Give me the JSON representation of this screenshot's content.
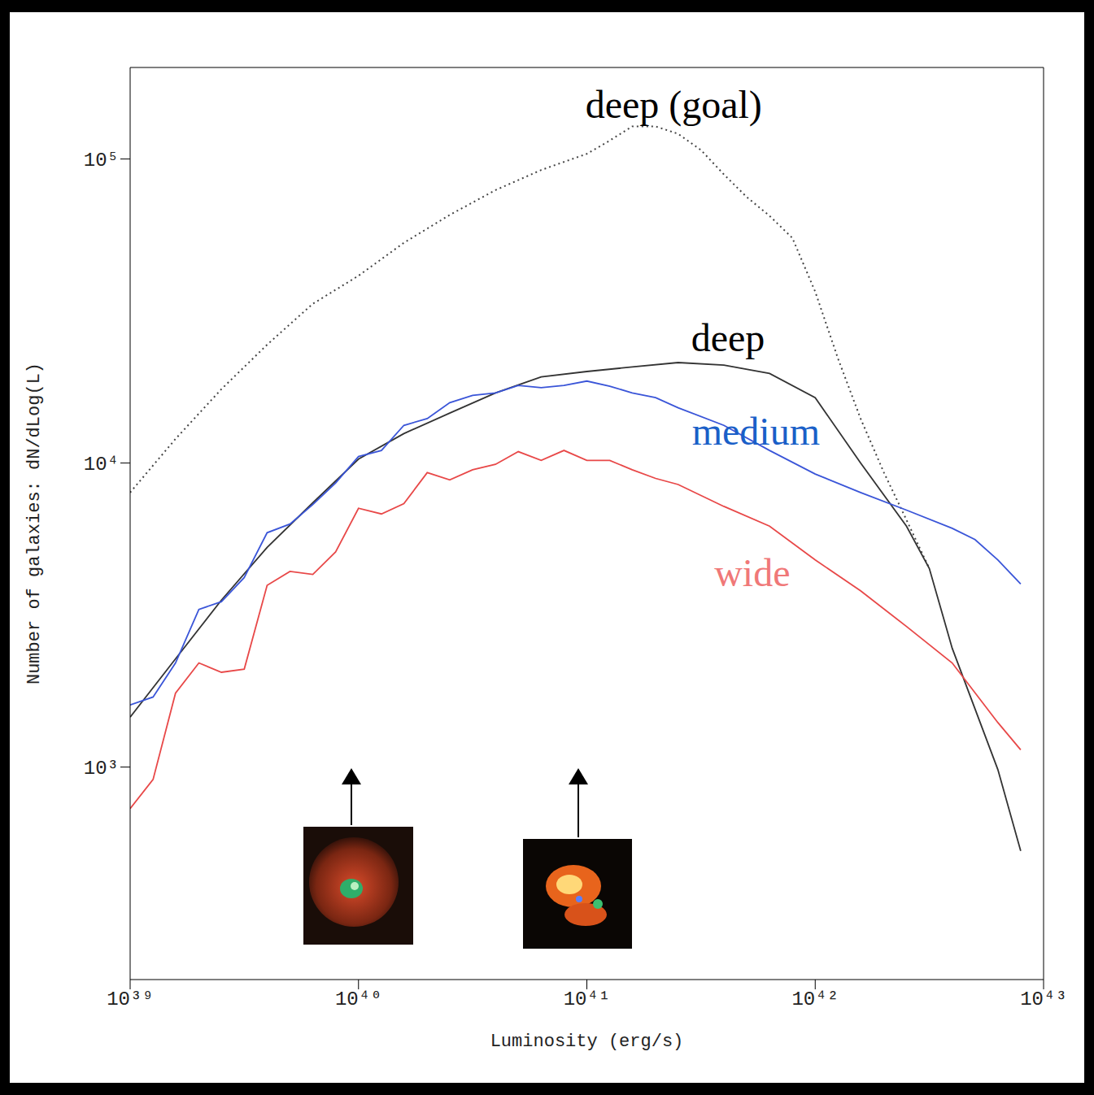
{
  "chart_data": {
    "type": "line",
    "x_label": "Luminosity (erg/s)",
    "y_label": "Number of galaxies: dN/dLog(L)",
    "log": true,
    "xlim": [
      1e+39,
      1e+43
    ],
    "xticks": [
      {
        "value": 1e+39,
        "label": "10³⁹"
      },
      {
        "value": 1e+40,
        "label": "10⁴⁰"
      },
      {
        "value": 1e+41,
        "label": "10⁴¹"
      },
      {
        "value": 1e+42,
        "label": "10⁴²"
      },
      {
        "value": 1e+43,
        "label": "10⁴³"
      }
    ],
    "ylim": [
      200,
      200000
    ],
    "yticks": [
      {
        "value": 1000,
        "label": "10³"
      },
      {
        "value": 10000,
        "label": "10⁴"
      },
      {
        "value": 100000,
        "label": "10⁵"
      }
    ],
    "series": [
      {
        "name": "deep (goal)",
        "color": "#444444",
        "line_style": "dotted",
        "x": [
          1e+39,
          1.58e+39,
          2.51e+39,
          3.98e+39,
          6.31e+39,
          1e+40,
          1.58e+40,
          2.51e+40,
          3.98e+40,
          6.31e+40,
          1e+41,
          1.26e+41,
          1.58e+41,
          2e+41,
          2.51e+41,
          3.16e+41,
          3.98e+41,
          5.01e+41,
          6.31e+41,
          7.94e+41,
          1e+42,
          1.26e+42,
          1.58e+42,
          2e+42,
          2.51e+42,
          3.16e+42
        ],
        "values": [
          8000,
          12000,
          17500,
          24500,
          33400,
          41300,
          53000,
          65500,
          79000,
          92000,
          104000,
          115000,
          128000,
          128000,
          121000,
          107000,
          89000,
          75000,
          65000,
          55000,
          36600,
          22000,
          14000,
          9300,
          6500,
          4500
        ]
      },
      {
        "name": "deep",
        "color": "#333333",
        "line_style": "solid",
        "x": [
          1e+39,
          1.58e+39,
          2.51e+39,
          3.98e+39,
          6.31e+39,
          1e+40,
          1.58e+40,
          2.51e+40,
          3.98e+40,
          6.31e+40,
          1e+41,
          1.58e+41,
          2.51e+41,
          3.98e+41,
          6.31e+41,
          1e+42,
          1.58e+42,
          2.51e+42,
          3.16e+42,
          3.98e+42,
          6.31e+42,
          7.94e+42
        ],
        "values": [
          1460,
          2270,
          3540,
          5280,
          7400,
          10300,
          12500,
          14600,
          17000,
          19200,
          20000,
          20700,
          21400,
          21000,
          19700,
          16400,
          10000,
          6200,
          4500,
          2460,
          980,
          530
        ]
      },
      {
        "name": "medium",
        "color": "#3a55d8",
        "line_style": "solid",
        "x": [
          1e+39,
          1.26e+39,
          1.58e+39,
          2e+39,
          2.51e+39,
          3.16e+39,
          3.98e+39,
          5.01e+39,
          6.31e+39,
          7.94e+39,
          1e+40,
          1.26e+40,
          1.58e+40,
          2e+40,
          2.51e+40,
          3.16e+40,
          3.98e+40,
          5.01e+40,
          6.31e+40,
          7.94e+40,
          1e+41,
          1.26e+41,
          1.58e+41,
          2e+41,
          2.51e+41,
          3.98e+41,
          6.31e+41,
          1e+42,
          1.58e+42,
          2.51e+42,
          3.98e+42,
          5.01e+42,
          6.31e+42,
          7.94e+42
        ],
        "values": [
          1600,
          1700,
          2200,
          3300,
          3500,
          4200,
          5900,
          6300,
          7300,
          8600,
          10500,
          11000,
          13300,
          14000,
          15800,
          16700,
          17000,
          18000,
          17700,
          18000,
          18600,
          17900,
          17000,
          16400,
          15200,
          13300,
          11000,
          9200,
          8000,
          7000,
          6100,
          5600,
          4800,
          4000
        ]
      },
      {
        "name": "wide",
        "color": "#e84848",
        "line_style": "solid",
        "x": [
          1e+39,
          1.26e+39,
          1.58e+39,
          2e+39,
          2.51e+39,
          3.16e+39,
          3.98e+39,
          5.01e+39,
          6.31e+39,
          7.94e+39,
          1e+40,
          1.26e+40,
          1.58e+40,
          2e+40,
          2.51e+40,
          3.16e+40,
          3.98e+40,
          5.01e+40,
          6.31e+40,
          7.94e+40,
          1e+41,
          1.26e+41,
          1.58e+41,
          2e+41,
          2.51e+41,
          3.98e+41,
          6.31e+41,
          1e+42,
          1.58e+42,
          2.51e+42,
          3.98e+42,
          6.31e+42,
          7.94e+42
        ],
        "values": [
          730,
          910,
          1750,
          2200,
          2050,
          2100,
          3960,
          4400,
          4300,
          5100,
          7100,
          6800,
          7350,
          9300,
          8800,
          9500,
          9900,
          10900,
          10200,
          11000,
          10200,
          10200,
          9500,
          8900,
          8500,
          7200,
          6200,
          4800,
          3800,
          2900,
          2200,
          1400,
          1140
        ]
      }
    ],
    "annotations": [
      {
        "text": "deep (goal)",
        "x": 2.4e+41,
        "y": 152000,
        "color": "#000000"
      },
      {
        "text": "deep",
        "x": 4.15e+41,
        "y": 25900,
        "color": "#000000"
      },
      {
        "text": "medium",
        "x": 5.5e+41,
        "y": 12800,
        "color": "#1a5fc8"
      },
      {
        "text": "wide",
        "x": 5.3e+41,
        "y": 4370,
        "color": "#f07878"
      }
    ]
  }
}
